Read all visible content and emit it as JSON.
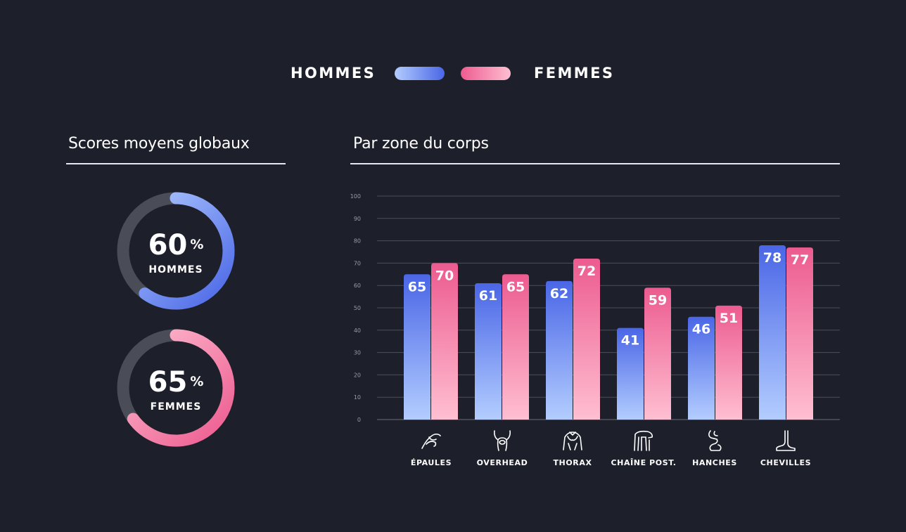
{
  "legend": {
    "men_label": "HOMMES",
    "women_label": "FEMMES"
  },
  "overall": {
    "title": "Scores moyens globaux",
    "men": {
      "value": "60",
      "unit": "%",
      "label": "HOMMES",
      "fraction": 0.6
    },
    "women": {
      "value": "65",
      "unit": "%",
      "label": "FEMMES",
      "fraction": 0.65
    }
  },
  "by_zone": {
    "title": "Par zone du corps"
  },
  "icons": [
    "shoulder-icon",
    "overhead-icon",
    "thorax-icon",
    "posterior-chain-icon",
    "hips-icon",
    "ankle-icon"
  ],
  "colors": {
    "background": "#1d1f2b",
    "men_top": "#4a66e6",
    "men_bottom": "#b3cdff",
    "women_top": "#ec5b8f",
    "women_bottom": "#ffbfd2",
    "ring_track": "#4a4d57"
  },
  "chart_data": {
    "type": "bar",
    "categories": [
      "ÉPAULES",
      "OVERHEAD",
      "THORAX",
      "CHAÎNE POST.",
      "HANCHES",
      "CHEVILLES"
    ],
    "series": [
      {
        "name": "HOMMES",
        "values": [
          65,
          61,
          62,
          41,
          46,
          78
        ]
      },
      {
        "name": "FEMMES",
        "values": [
          70,
          65,
          72,
          59,
          51,
          77
        ]
      }
    ],
    "ylim": [
      0,
      100
    ],
    "yticks": [
      "0",
      "10",
      "20",
      "30",
      "40",
      "50",
      "60",
      "70",
      "80",
      "90",
      "100"
    ],
    "grid": true,
    "legend_position": "top-center"
  }
}
